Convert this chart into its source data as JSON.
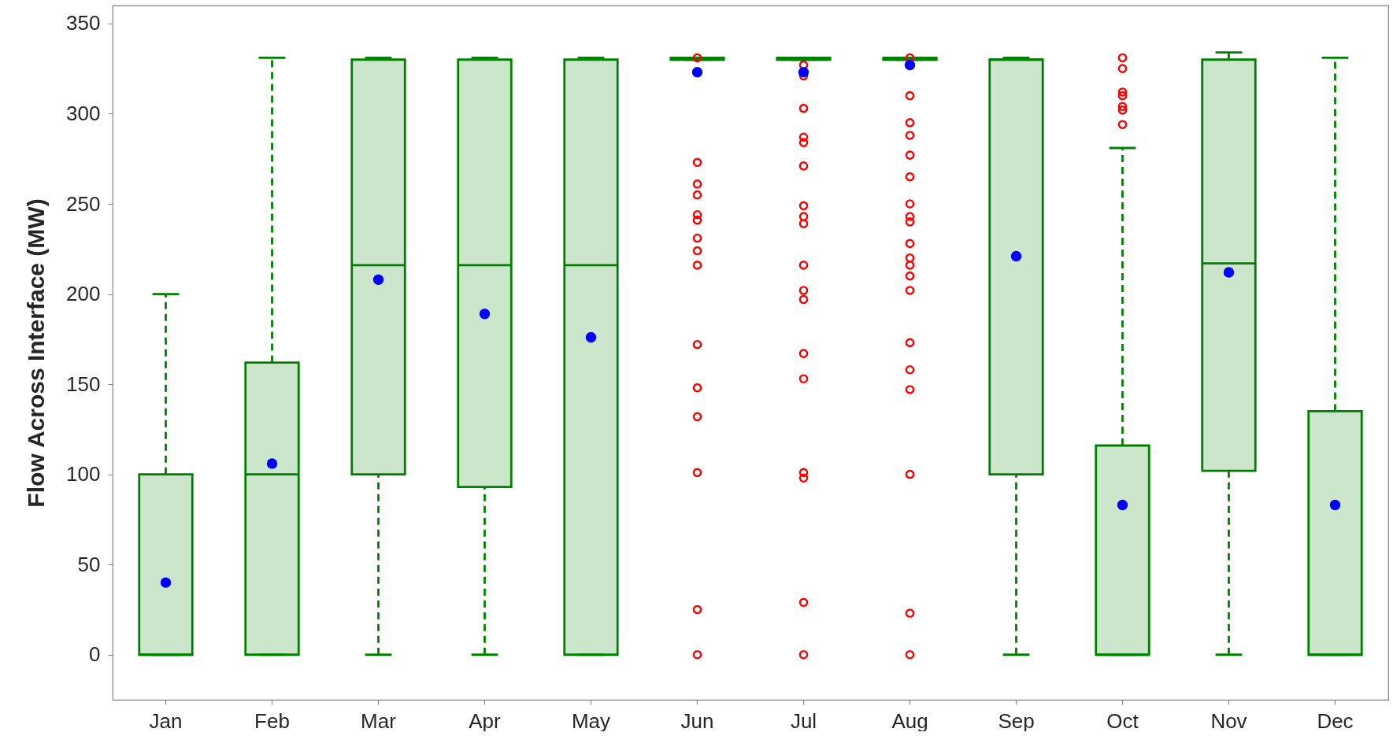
{
  "chart_data": {
    "type": "box",
    "ylabel": "Flow Across Interface (MW)",
    "categories": [
      "Jan",
      "Feb",
      "Mar",
      "Apr",
      "May",
      "Jun",
      "Jul",
      "Aug",
      "Sep",
      "Oct",
      "Nov",
      "Dec"
    ],
    "ylim": [
      -25,
      360
    ],
    "yticks": [
      0,
      50,
      100,
      150,
      200,
      250,
      300,
      350
    ],
    "grid": false,
    "series": [
      {
        "color": "#008000",
        "line_style": "dashed",
        "boxes": [
          {
            "low": 0,
            "q1": 0,
            "median": 0,
            "q3": 100,
            "high": 200,
            "mean": 40
          },
          {
            "low": 0,
            "q1": 0,
            "median": 100,
            "q3": 162,
            "high": 331,
            "mean": 106
          },
          {
            "low": 0,
            "q1": 100,
            "median": 216,
            "q3": 330,
            "high": 331,
            "mean": 208
          },
          {
            "low": 0,
            "q1": 93,
            "median": 216,
            "q3": 330,
            "high": 331,
            "mean": 189
          },
          {
            "low": 0,
            "q1": 0,
            "median": 216,
            "q3": 330,
            "high": 331,
            "mean": 176
          },
          {
            "low": 330,
            "q1": 330,
            "median": 330,
            "q3": 331,
            "high": 331,
            "mean": 323,
            "outliers": [
              331,
              273,
              261,
              255,
              244,
              241,
              231,
              224,
              216,
              172,
              148,
              132,
              101,
              25,
              0
            ]
          },
          {
            "low": 330,
            "q1": 330,
            "median": 330,
            "q3": 331,
            "high": 331,
            "mean": 323,
            "outliers": [
              327,
              321,
              303,
              287,
              284,
              271,
              249,
              243,
              239,
              216,
              202,
              197,
              167,
              153,
              101,
              98,
              29,
              0
            ]
          },
          {
            "low": 330,
            "q1": 330,
            "median": 330,
            "q3": 331,
            "high": 331,
            "mean": 327,
            "outliers": [
              331,
              310,
              295,
              288,
              277,
              265,
              250,
              243,
              240,
              228,
              220,
              216,
              210,
              202,
              173,
              158,
              147,
              100,
              23,
              0
            ]
          },
          {
            "low": 0,
            "q1": 100,
            "median": 330,
            "q3": 330,
            "high": 331,
            "mean": 221
          },
          {
            "low": 0,
            "q1": 0,
            "median": 0,
            "q3": 116,
            "high": 281,
            "mean": 83,
            "outliers": [
              331,
              325,
              312,
              310,
              304,
              302,
              294
            ]
          },
          {
            "low": 0,
            "q1": 102,
            "median": 217,
            "q3": 330,
            "high": 334,
            "mean": 212
          },
          {
            "low": 0,
            "q1": 0,
            "median": 0,
            "q3": 135,
            "high": 331,
            "mean": 83
          }
        ]
      }
    ]
  }
}
